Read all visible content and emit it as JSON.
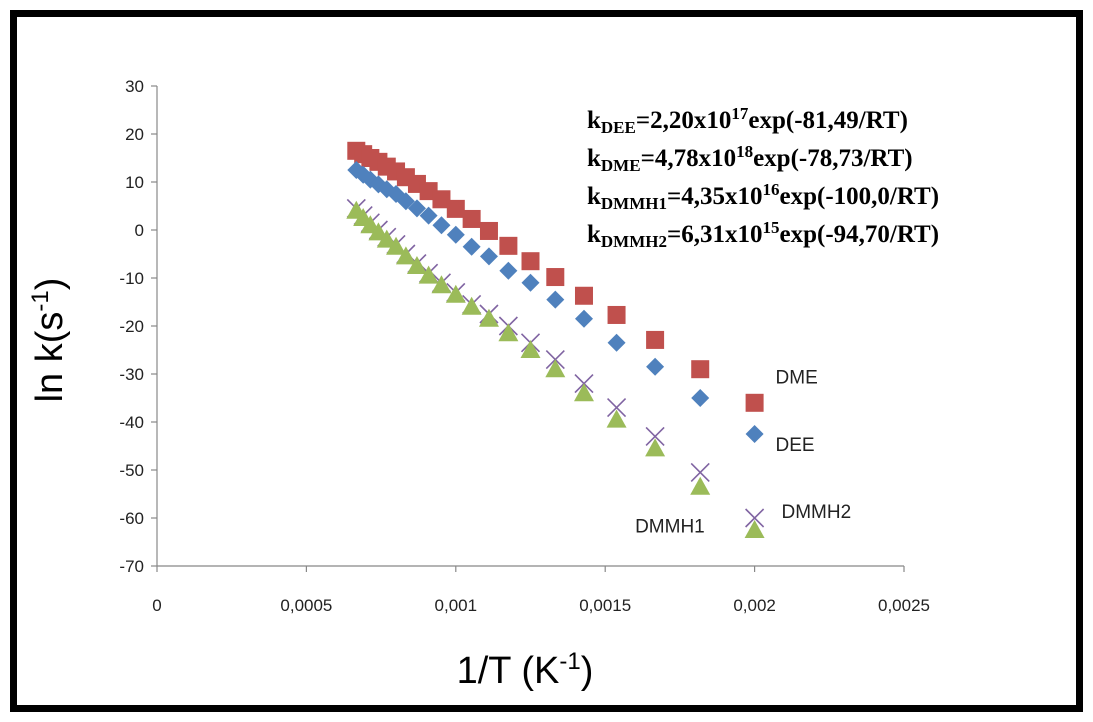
{
  "chart_data": {
    "type": "scatter",
    "title": "",
    "xlabel": {
      "base": "1/T (K",
      "sup": "-1",
      "close": ")"
    },
    "ylabel": {
      "base": "ln k(s",
      "sup": "-1",
      "close": ")"
    },
    "xlim": [
      0,
      0.0025
    ],
    "ylim": [
      -70,
      30
    ],
    "x_ticks": [
      0,
      0.0005,
      0.001,
      0.0015,
      0.002,
      0.0025
    ],
    "x_tick_labels": [
      "0",
      "0,0005",
      "0,001",
      "0,0015",
      "0,002",
      "0,0025"
    ],
    "y_ticks": [
      30,
      20,
      10,
      0,
      -10,
      -20,
      -30,
      -40,
      -50,
      -60,
      -70
    ],
    "y_tick_labels": [
      "30",
      "20",
      "10",
      "0",
      "-10",
      "-20",
      "-30",
      "-40",
      "-50",
      "-60",
      "-70"
    ],
    "grid": false,
    "x": [
      0.000667,
      0.00069,
      0.000714,
      0.000741,
      0.000769,
      0.0008,
      0.000833,
      0.00087,
      0.000909,
      0.000952,
      0.001,
      0.001053,
      0.001111,
      0.001176,
      0.00125,
      0.001333,
      0.001429,
      0.001538,
      0.001667,
      0.001818,
      0.002
    ],
    "series": [
      {
        "name": "DME",
        "color": "#c0504d",
        "marker": "square",
        "values": [
          16.5,
          15.8,
          15.0,
          14.2,
          13.2,
          12.2,
          11.0,
          9.6,
          8.1,
          6.4,
          4.4,
          2.3,
          -0.2,
          -3.3,
          -6.5,
          -9.8,
          -13.7,
          -17.7,
          -22.9,
          -29.0,
          -36.0
        ]
      },
      {
        "name": "DEE",
        "color": "#4f81bd",
        "marker": "diamond",
        "values": [
          12.5,
          11.5,
          10.5,
          9.5,
          8.5,
          7.5,
          6.0,
          4.5,
          3.0,
          1.0,
          -1.0,
          -3.5,
          -5.5,
          -8.5,
          -11.0,
          -14.5,
          -18.5,
          -23.5,
          -28.5,
          -35.0,
          -42.5
        ]
      },
      {
        "name": "DMMH2",
        "color": "#8064a2",
        "marker": "cross",
        "values": [
          4.5,
          3.0,
          1.5,
          0.0,
          -1.5,
          -3.0,
          -5.0,
          -7.0,
          -9.0,
          -11.0,
          -13.0,
          -15.5,
          -17.5,
          -20.0,
          -23.5,
          -27.0,
          -32.0,
          -37.0,
          -43.0,
          -50.5,
          -60.0
        ]
      },
      {
        "name": "DMMH1",
        "color": "#9bbb59",
        "marker": "triangle",
        "values": [
          4.0,
          2.5,
          1.0,
          -0.5,
          -2.0,
          -3.5,
          -5.5,
          -7.5,
          -9.5,
          -11.5,
          -13.5,
          -16.0,
          -18.5,
          -21.5,
          -25.0,
          -29.0,
          -34.0,
          -39.5,
          -45.5,
          -53.5,
          -62.5
        ]
      }
    ],
    "series_labels": [
      {
        "text": "DME",
        "at": [
          0.00207,
          -32
        ]
      },
      {
        "text": "DEE",
        "at": [
          0.00207,
          -46
        ]
      },
      {
        "text": "DMMH2",
        "at": [
          0.00209,
          -60
        ]
      },
      {
        "text": "DMMH1",
        "at": [
          0.0016,
          -63
        ]
      }
    ],
    "annotations": [
      {
        "k": "k",
        "sub": "DEE",
        "mid": "=2,20x10",
        "sup": "17",
        "tail": "exp(-81,49/RT)"
      },
      {
        "k": "k",
        "sub": "DME",
        "mid": "=4,78x10",
        "sup": "18",
        "tail": "exp(-78,73/RT)"
      },
      {
        "k": "k",
        "sub": "DMMH1",
        "mid": "=4,35x10",
        "sup": "16",
        "tail": "exp(-100,0/RT)"
      },
      {
        "k": "k",
        "sub": "DMMH2",
        "mid": "=6,31x10",
        "sup": "15",
        "tail": "exp(-94,70/RT)"
      }
    ]
  }
}
